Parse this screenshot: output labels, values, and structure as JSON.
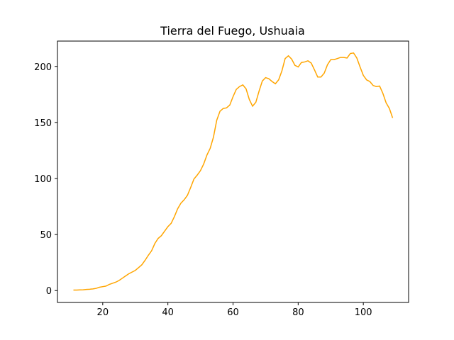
{
  "chart_data": {
    "type": "line",
    "title": "Tierra del Fuego, Ushuaia",
    "x": [
      11,
      12,
      13,
      14,
      15,
      16,
      17,
      18,
      19,
      20,
      21,
      22,
      23,
      24,
      25,
      26,
      27,
      28,
      29,
      30,
      31,
      32,
      33,
      34,
      35,
      36,
      37,
      38,
      39,
      40,
      41,
      42,
      43,
      44,
      45,
      46,
      47,
      48,
      49,
      50,
      51,
      52,
      53,
      54,
      55,
      56,
      57,
      58,
      59,
      60,
      61,
      62,
      63,
      64,
      65,
      66,
      67,
      68,
      69,
      70,
      71,
      72,
      73,
      74,
      75,
      76,
      77,
      78,
      79,
      80,
      81,
      82,
      83,
      84,
      85,
      86,
      87,
      88,
      89,
      90,
      91,
      92,
      93,
      94,
      95,
      96,
      97,
      98,
      99,
      100,
      101,
      102,
      103,
      104,
      105,
      106,
      107,
      108,
      109
    ],
    "series": [
      {
        "color": "#ffa500",
        "values": [
          0.5,
          0.5,
          0.6,
          0.7,
          1,
          1.2,
          1.5,
          2,
          3,
          3.5,
          4,
          5.5,
          6.5,
          7.5,
          9,
          11,
          13,
          15,
          16.5,
          18,
          20.5,
          23,
          27,
          31.5,
          35.5,
          42,
          46.5,
          49,
          53,
          57,
          60,
          66,
          73,
          78,
          81,
          85,
          92,
          99.5,
          103,
          107,
          113,
          121,
          127,
          137,
          152,
          160,
          162.5,
          163,
          165.5,
          173,
          179.5,
          182,
          183.5,
          180,
          170.5,
          164.5,
          168,
          178,
          187,
          190,
          189,
          186.5,
          184.5,
          188,
          196,
          207,
          209.5,
          206.5,
          201,
          199.5,
          203.5,
          204,
          205,
          203,
          197,
          190.5,
          190.5,
          194,
          201.5,
          206,
          206,
          207,
          208,
          208,
          207.5,
          211.5,
          212,
          207.5,
          199.5,
          192,
          188,
          186.5,
          183,
          182,
          182.5,
          176,
          167.5,
          162.5,
          154
        ]
      }
    ],
    "xlim": [
      6.1,
      113.9
    ],
    "xticks": [
      20,
      40,
      60,
      80,
      100
    ],
    "ylim": [
      -10.6,
      222.6
    ],
    "yticks": [
      0,
      50,
      100,
      150,
      200
    ]
  }
}
